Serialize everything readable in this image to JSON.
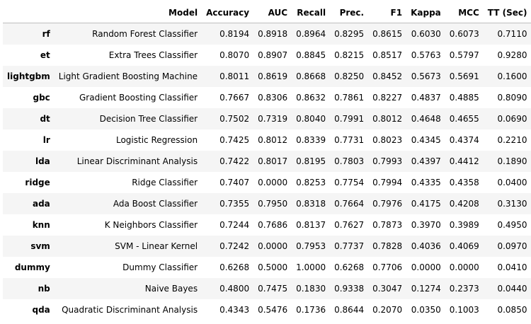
{
  "columns": {
    "index": "",
    "model": "Model",
    "accuracy": "Accuracy",
    "auc": "AUC",
    "recall": "Recall",
    "prec": "Prec.",
    "f1": "F1",
    "kappa": "Kappa",
    "mcc": "MCC",
    "tt": "TT (Sec)"
  },
  "rows": [
    {
      "id": "rf",
      "model": "Random Forest Classifier",
      "accuracy": "0.8194",
      "auc": "0.8918",
      "recall": "0.8964",
      "prec": "0.8295",
      "f1": "0.8615",
      "kappa": "0.6030",
      "mcc": "0.6073",
      "tt": "0.7110"
    },
    {
      "id": "et",
      "model": "Extra Trees Classifier",
      "accuracy": "0.8070",
      "auc": "0.8907",
      "recall": "0.8845",
      "prec": "0.8215",
      "f1": "0.8517",
      "kappa": "0.5763",
      "mcc": "0.5797",
      "tt": "0.9280"
    },
    {
      "id": "lightgbm",
      "model": "Light Gradient Boosting Machine",
      "accuracy": "0.8011",
      "auc": "0.8619",
      "recall": "0.8668",
      "prec": "0.8250",
      "f1": "0.8452",
      "kappa": "0.5673",
      "mcc": "0.5691",
      "tt": "0.1600"
    },
    {
      "id": "gbc",
      "model": "Gradient Boosting Classifier",
      "accuracy": "0.7667",
      "auc": "0.8306",
      "recall": "0.8632",
      "prec": "0.7861",
      "f1": "0.8227",
      "kappa": "0.4837",
      "mcc": "0.4885",
      "tt": "0.8090"
    },
    {
      "id": "dt",
      "model": "Decision Tree Classifier",
      "accuracy": "0.7502",
      "auc": "0.7319",
      "recall": "0.8040",
      "prec": "0.7991",
      "f1": "0.8012",
      "kappa": "0.4648",
      "mcc": "0.4655",
      "tt": "0.0690"
    },
    {
      "id": "lr",
      "model": "Logistic Regression",
      "accuracy": "0.7425",
      "auc": "0.8012",
      "recall": "0.8339",
      "prec": "0.7731",
      "f1": "0.8023",
      "kappa": "0.4345",
      "mcc": "0.4374",
      "tt": "0.2210"
    },
    {
      "id": "lda",
      "model": "Linear Discriminant Analysis",
      "accuracy": "0.7422",
      "auc": "0.8017",
      "recall": "0.8195",
      "prec": "0.7803",
      "f1": "0.7993",
      "kappa": "0.4397",
      "mcc": "0.4412",
      "tt": "0.1890"
    },
    {
      "id": "ridge",
      "model": "Ridge Classifier",
      "accuracy": "0.7407",
      "auc": "0.0000",
      "recall": "0.8253",
      "prec": "0.7754",
      "f1": "0.7994",
      "kappa": "0.4335",
      "mcc": "0.4358",
      "tt": "0.0400"
    },
    {
      "id": "ada",
      "model": "Ada Boost Classifier",
      "accuracy": "0.7355",
      "auc": "0.7950",
      "recall": "0.8318",
      "prec": "0.7664",
      "f1": "0.7976",
      "kappa": "0.4175",
      "mcc": "0.4208",
      "tt": "0.3130"
    },
    {
      "id": "knn",
      "model": "K Neighbors Classifier",
      "accuracy": "0.7244",
      "auc": "0.7686",
      "recall": "0.8137",
      "prec": "0.7627",
      "f1": "0.7873",
      "kappa": "0.3970",
      "mcc": "0.3989",
      "tt": "0.4950"
    },
    {
      "id": "svm",
      "model": "SVM - Linear Kernel",
      "accuracy": "0.7242",
      "auc": "0.0000",
      "recall": "0.7953",
      "prec": "0.7737",
      "f1": "0.7828",
      "kappa": "0.4036",
      "mcc": "0.4069",
      "tt": "0.0970"
    },
    {
      "id": "dummy",
      "model": "Dummy Classifier",
      "accuracy": "0.6268",
      "auc": "0.5000",
      "recall": "1.0000",
      "prec": "0.6268",
      "f1": "0.7706",
      "kappa": "0.0000",
      "mcc": "0.0000",
      "tt": "0.0410"
    },
    {
      "id": "nb",
      "model": "Naive Bayes",
      "accuracy": "0.4800",
      "auc": "0.7475",
      "recall": "0.1830",
      "prec": "0.9338",
      "f1": "0.3047",
      "kappa": "0.1274",
      "mcc": "0.2373",
      "tt": "0.0440"
    },
    {
      "id": "qda",
      "model": "Quadratic Discriminant Analysis",
      "accuracy": "0.4343",
      "auc": "0.5476",
      "recall": "0.1736",
      "prec": "0.8644",
      "f1": "0.2070",
      "kappa": "0.0350",
      "mcc": "0.1003",
      "tt": "0.0850"
    }
  ]
}
